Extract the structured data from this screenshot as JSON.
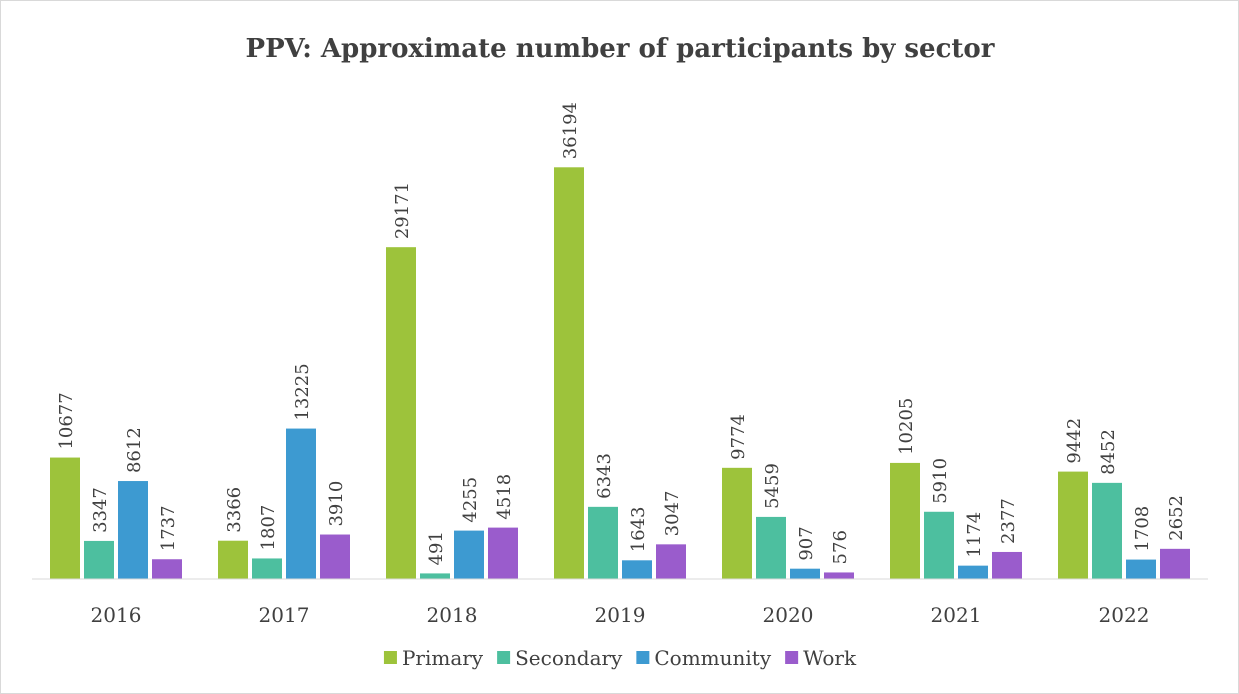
{
  "chart_data": {
    "type": "bar",
    "title": "PPV: Approximate number of participants by sector",
    "categories": [
      "2016",
      "2017",
      "2018",
      "2019",
      "2020",
      "2021",
      "2022"
    ],
    "series": [
      {
        "name": "Primary",
        "color": "#9dc33b",
        "values": [
          10677,
          3366,
          29171,
          36194,
          9774,
          10205,
          9442
        ]
      },
      {
        "name": "Secondary",
        "color": "#4dbf9f",
        "values": [
          3347,
          1807,
          491,
          6343,
          5459,
          5910,
          8452
        ]
      },
      {
        "name": "Community",
        "color": "#3d9ad1",
        "values": [
          8612,
          13225,
          4255,
          1643,
          907,
          1174,
          1708
        ]
      },
      {
        "name": "Work",
        "color": "#9a5ccc",
        "values": [
          1737,
          3910,
          4518,
          3047,
          576,
          2377,
          2652
        ]
      }
    ],
    "ylim": [
      0,
      40000
    ],
    "legend": "bottom"
  }
}
